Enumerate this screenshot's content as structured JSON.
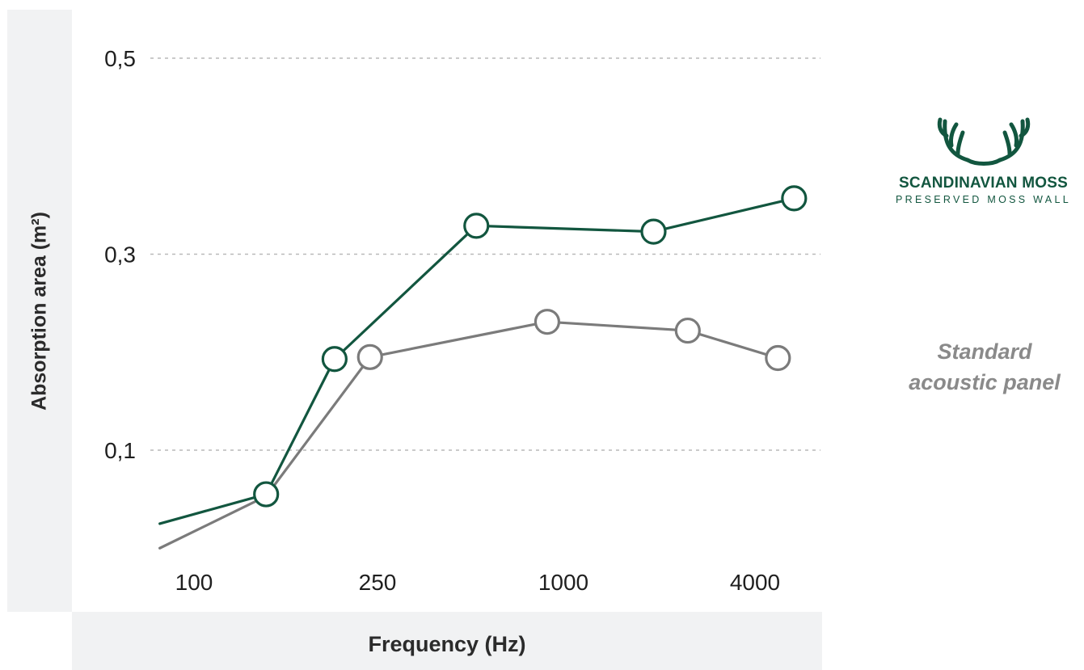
{
  "chart_data": {
    "type": "line",
    "xlabel": "Frequency (Hz)",
    "ylabel": "Absorption area (m²)",
    "x_ticks": [
      "100",
      "250",
      "1000",
      "4000"
    ],
    "y_ticks": [
      "0,1",
      "0,3",
      "0,5"
    ],
    "y_tick_values": [
      0.1,
      0.3,
      0.5
    ],
    "ylim": [
      0.0,
      0.55
    ],
    "grid": "horizontal dotted",
    "series": [
      {
        "name": "SCANDINAVIAN MOSS",
        "color": "#12563f",
        "x": [
          80,
          160,
          250,
          630,
          2000,
          5000
        ],
        "y": [
          0.025,
          0.055,
          0.193,
          0.329,
          0.323,
          0.357
        ],
        "markers": [
          false,
          true,
          true,
          true,
          true,
          true
        ]
      },
      {
        "name": "Standard acoustic panel",
        "color": "#7b7b7b",
        "x": [
          80,
          160,
          315,
          1000,
          2500,
          4500
        ],
        "y": [
          0.0,
          0.053,
          0.195,
          0.231,
          0.222,
          0.194
        ],
        "markers": [
          false,
          false,
          true,
          true,
          true,
          true
        ]
      }
    ]
  },
  "legend": {
    "moss_brand": "SCANDINAVIAN MOSS",
    "moss_tagline": "PRESERVED MOSS WALL",
    "moss_logo_icon": "antlers-icon",
    "standard_line1": "Standard",
    "standard_line2": "acoustic panel"
  }
}
